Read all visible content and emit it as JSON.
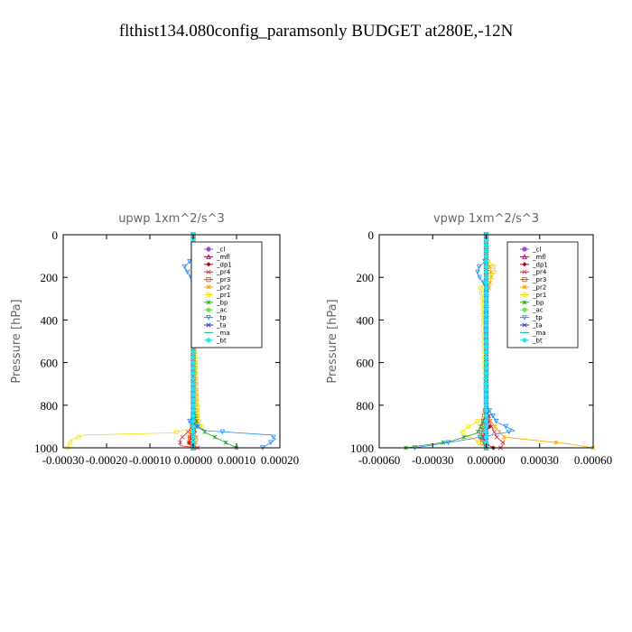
{
  "title": "flthist134.080config_paramsonly  BUDGET at280E,-12N",
  "legend_labels": [
    "_cl",
    "_mfl",
    "_dp1",
    "_pr4",
    "_pr3",
    "_pr2",
    "_pr1",
    "_bp",
    "_ac",
    "_tp",
    "_ta",
    "_ma",
    "_bt"
  ],
  "colors": {
    "_cl": "#9b4dca",
    "_mfl": "#8b0a50",
    "_dp1": "#a0102a",
    "_pr4": "#e8202a",
    "_pr3": "#ff4500",
    "_pr2": "#ffa500",
    "_pr1": "#eedd00",
    "_bp": "#22aa22",
    "_ac": "#66ee44",
    "_tp": "#1e90ff",
    "_ta": "#2233cc",
    "_ma": "#20b2aa",
    "_bt": "#22e5ee"
  },
  "chart_data": [
    {
      "type": "line",
      "title": "upwp   1xm^2/s^3",
      "ylabel": "Pressure [hPa]",
      "xlim": [
        -0.0003,
        0.0002
      ],
      "ylim": [
        1000,
        0
      ],
      "xticks": [
        "-0.00030",
        "-0.00020",
        "-0.00010",
        "0.00000",
        "0.00010",
        "0.00020"
      ],
      "xtick_values": [
        -0.0003,
        -0.0002,
        -0.0001,
        0,
        0.0001,
        0.0002
      ],
      "yticks": [
        "0",
        "200",
        "400",
        "600",
        "800",
        "1000"
      ],
      "ytick_values": [
        0,
        200,
        400,
        600,
        800,
        1000
      ],
      "legend": "upper-right",
      "series": [
        {
          "name": "_cl",
          "x": [
            0,
            0,
            0,
            0,
            0,
            0,
            0,
            0
          ],
          "y": [
            0,
            150,
            300,
            500,
            700,
            850,
            950,
            1000
          ]
        },
        {
          "name": "_mfl",
          "x": [
            0,
            0,
            0,
            0,
            0,
            0,
            0,
            0
          ],
          "y": [
            0,
            150,
            300,
            500,
            700,
            850,
            950,
            1000
          ]
        },
        {
          "name": "_dp1",
          "x": [
            0,
            0,
            0,
            0,
            5e-06,
            -5e-06,
            -1e-05,
            0
          ],
          "y": [
            0,
            300,
            600,
            850,
            920,
            950,
            980,
            1000
          ]
        },
        {
          "name": "_pr4",
          "x": [
            0,
            0,
            0,
            3e-06,
            -1e-05,
            -3e-05,
            -3e-05,
            1e-05
          ],
          "y": [
            0,
            400,
            800,
            880,
            920,
            960,
            990,
            1000
          ]
        },
        {
          "name": "_pr3",
          "x": [
            0,
            0,
            0,
            0,
            -5e-06,
            -1e-05,
            0
          ],
          "y": [
            0,
            400,
            800,
            900,
            940,
            970,
            1000
          ]
        },
        {
          "name": "_pr2",
          "x": [
            0,
            0,
            1e-05,
            1e-05,
            0,
            1e-05,
            0,
            1e-05,
            0
          ],
          "y": [
            0,
            120,
            150,
            200,
            300,
            870,
            920,
            960,
            1000
          ]
        },
        {
          "name": "_pr1",
          "x": [
            0,
            0,
            2e-05,
            2e-05,
            1e-05,
            0,
            1e-05,
            2e-05,
            -5e-05,
            -0.00025,
            -0.00028,
            -0.00029
          ],
          "y": [
            0,
            120,
            150,
            170,
            200,
            300,
            870,
            900,
            930,
            940,
            960,
            1000
          ]
        },
        {
          "name": "_bp",
          "x": [
            0,
            0,
            1e-05,
            3e-05,
            6e-05,
            8e-05,
            0.0001
          ],
          "y": [
            0,
            800,
            900,
            930,
            960,
            980,
            1000
          ]
        },
        {
          "name": "_ac",
          "x": [
            0,
            0,
            0,
            0,
            0
          ],
          "y": [
            0,
            400,
            800,
            950,
            1000
          ]
        },
        {
          "name": "_tp",
          "x": [
            0,
            0,
            -1e-05,
            -2e-05,
            -1.5e-05,
            -5e-06,
            0,
            0,
            -1e-05,
            3e-05,
            0.00018,
            0.00019,
            0.00016
          ],
          "y": [
            0,
            100,
            130,
            150,
            170,
            200,
            230,
            850,
            880,
            920,
            940,
            960,
            1000
          ]
        },
        {
          "name": "_ta",
          "x": [
            0,
            0,
            0,
            0,
            0
          ],
          "y": [
            0,
            400,
            800,
            950,
            1000
          ]
        },
        {
          "name": "_ma",
          "x": [
            0,
            0,
            0,
            -3e-06,
            0,
            0
          ],
          "y": [
            0,
            400,
            800,
            900,
            950,
            1000
          ]
        },
        {
          "name": "_bt",
          "x": [
            0,
            0,
            0,
            0,
            0
          ],
          "y": [
            0,
            400,
            800,
            950,
            1000
          ]
        }
      ]
    },
    {
      "type": "line",
      "title": "vpwp   1xm^2/s^3",
      "ylabel": "Pressure [hPa]",
      "xlim": [
        -0.0006,
        0.0006
      ],
      "ylim": [
        1000,
        0
      ],
      "xticks": [
        "-0.00060",
        "-0.00030",
        "0.00000",
        "0.00030",
        "0.00060"
      ],
      "xtick_values": [
        -0.0006,
        -0.0003,
        0,
        0.0003,
        0.0006
      ],
      "yticks": [
        "0",
        "200",
        "400",
        "600",
        "800",
        "1000"
      ],
      "ytick_values": [
        0,
        200,
        400,
        600,
        800,
        1000
      ],
      "legend": "upper-right",
      "series": [
        {
          "name": "_cl",
          "x": [
            0,
            0,
            0,
            0,
            0,
            0,
            0,
            0
          ],
          "y": [
            0,
            150,
            300,
            500,
            700,
            850,
            950,
            1000
          ]
        },
        {
          "name": "_mfl",
          "x": [
            0,
            0,
            0,
            0,
            0,
            0,
            0,
            0
          ],
          "y": [
            0,
            150,
            300,
            500,
            700,
            850,
            950,
            1000
          ]
        },
        {
          "name": "_dp1",
          "x": [
            0,
            0,
            0,
            2e-05,
            -2e-05,
            0,
            4e-05
          ],
          "y": [
            0,
            300,
            800,
            900,
            950,
            980,
            1000
          ]
        },
        {
          "name": "_pr4",
          "x": [
            0,
            0,
            0,
            3e-05,
            6e-05,
            0.0001,
            8e-05
          ],
          "y": [
            0,
            400,
            800,
            900,
            950,
            980,
            1000
          ]
        },
        {
          "name": "_pr3",
          "x": [
            0,
            0,
            0,
            -2e-05,
            -3e-05,
            0
          ],
          "y": [
            0,
            400,
            800,
            900,
            960,
            1000
          ]
        },
        {
          "name": "_pr2",
          "x": [
            0,
            0,
            2e-05,
            3e-05,
            0,
            0,
            0.0001,
            0.00045,
            0.0006
          ],
          "y": [
            0,
            120,
            150,
            200,
            300,
            850,
            950,
            980,
            1000
          ]
        },
        {
          "name": "_pr1",
          "x": [
            0,
            0,
            4e-05,
            5e-05,
            2e-05,
            -3e-05,
            -2e-05,
            0,
            -0.0001,
            -0.00014,
            -5e-05,
            0
          ],
          "y": [
            0,
            120,
            140,
            170,
            200,
            250,
            300,
            850,
            900,
            930,
            970,
            1000
          ]
        },
        {
          "name": "_bp",
          "x": [
            0,
            0,
            -5e-05,
            -0.0002,
            -0.00045
          ],
          "y": [
            0,
            850,
            930,
            970,
            1000
          ]
        },
        {
          "name": "_ac",
          "x": [
            0,
            0,
            0,
            0
          ],
          "y": [
            0,
            500,
            900,
            1000
          ]
        },
        {
          "name": "_tp",
          "x": [
            0,
            0,
            -4e-05,
            -5e-05,
            -3e-05,
            0,
            0,
            6e-05,
            0.00016,
            -0.0001,
            -0.00025,
            -0.0004
          ],
          "y": [
            0,
            120,
            150,
            180,
            210,
            240,
            800,
            880,
            920,
            960,
            980,
            1000
          ]
        },
        {
          "name": "_ta",
          "x": [
            0,
            0,
            0,
            0
          ],
          "y": [
            0,
            500,
            900,
            1000
          ]
        },
        {
          "name": "_ma",
          "x": [
            0,
            0,
            0,
            -3e-05,
            0
          ],
          "y": [
            0,
            500,
            880,
            940,
            1000
          ]
        },
        {
          "name": "_bt",
          "x": [
            0,
            0,
            0,
            0
          ],
          "y": [
            0,
            500,
            900,
            1000
          ]
        }
      ]
    }
  ]
}
